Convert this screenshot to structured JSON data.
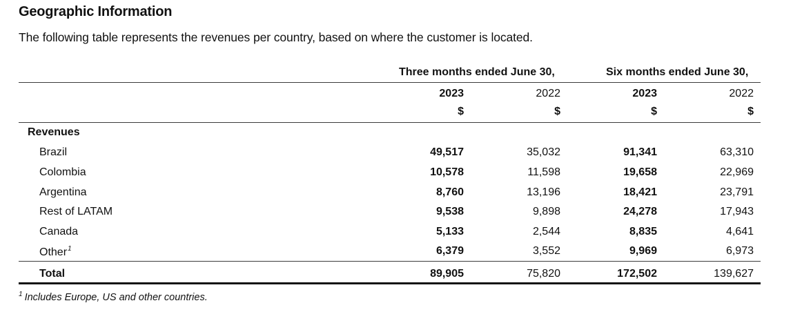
{
  "heading": "Geographic Information",
  "intro": "The following table represents the revenues per country, based on where the customer is located.",
  "groups": {
    "three_months": "Three months ended June 30,",
    "six_months": "Six months ended June 30,"
  },
  "columns": [
    {
      "year": "2023",
      "currency": "$"
    },
    {
      "year": "2022",
      "currency": "$"
    },
    {
      "year": "2023",
      "currency": "$"
    },
    {
      "year": "2022",
      "currency": "$"
    }
  ],
  "section_label": "Revenues",
  "rows": [
    {
      "label": "Brazil",
      "values": [
        "49,517",
        "35,032",
        "91,341",
        "63,310"
      ]
    },
    {
      "label": "Colombia",
      "values": [
        "10,578",
        "11,598",
        "19,658",
        "22,969"
      ]
    },
    {
      "label": "Argentina",
      "values": [
        "8,760",
        "13,196",
        "18,421",
        "23,791"
      ]
    },
    {
      "label": "Rest of LATAM",
      "values": [
        "9,538",
        "9,898",
        "24,278",
        "17,943"
      ]
    },
    {
      "label": "Canada",
      "values": [
        "5,133",
        "2,544",
        "8,835",
        "4,641"
      ]
    },
    {
      "label": "Other",
      "footnote_mark": "1",
      "values": [
        "6,379",
        "3,552",
        "9,969",
        "6,973"
      ]
    }
  ],
  "total": {
    "label": "Total",
    "values": [
      "89,905",
      "75,820",
      "172,502",
      "139,627"
    ]
  },
  "footnote": {
    "mark": "1",
    "text": "Includes Europe, US and other countries."
  }
}
